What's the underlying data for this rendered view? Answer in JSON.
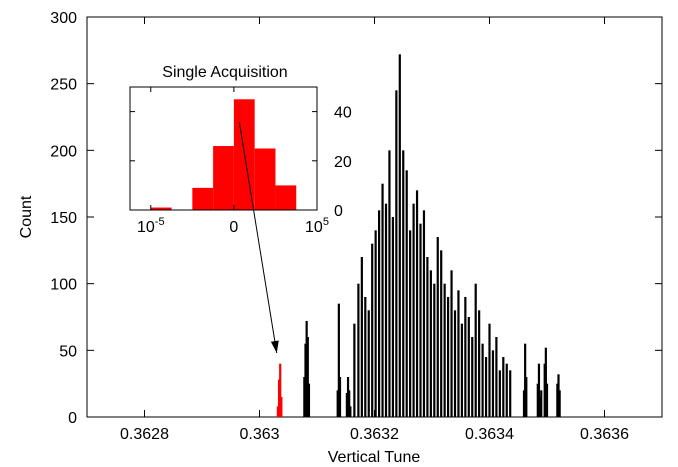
{
  "chart_data": [
    {
      "type": "bar",
      "title": "",
      "xlabel": "Vertical Tune",
      "ylabel": "Count",
      "xlim": [
        0.3627,
        0.3637
      ],
      "ylim": [
        0,
        300
      ],
      "xticks": [
        0.3628,
        0.363,
        0.3632,
        0.3634,
        0.3636
      ],
      "xtick_labels": [
        "0.3628",
        "0.363",
        "0.3632",
        "0.3634",
        "0.3636"
      ],
      "yticks": [
        0,
        50,
        100,
        150,
        200,
        250,
        300
      ],
      "ytick_labels": [
        "0",
        "50",
        "100",
        "150",
        "200",
        "250",
        "300"
      ],
      "grid": false,
      "series": [
        {
          "color": "#ff0000",
          "x": [
            0.363032,
            0.363034,
            0.363036,
            0.363038
          ],
          "values": [
            8,
            28,
            40,
            15
          ]
        },
        {
          "color": "#000000",
          "x": [
            0.363078,
            0.36308,
            0.363082,
            0.363084,
            0.363086,
            0.363136,
            0.363138,
            0.36314,
            0.363152,
            0.363154,
            0.363156,
            0.363158,
            0.363165,
            0.363172,
            0.363178,
            0.363184,
            0.36319,
            0.363196,
            0.363202,
            0.363208,
            0.363214,
            0.36322,
            0.363226,
            0.363232,
            0.363238,
            0.363244,
            0.36325,
            0.363256,
            0.363262,
            0.363268,
            0.363274,
            0.36328,
            0.363286,
            0.363292,
            0.363298,
            0.363304,
            0.36331,
            0.363316,
            0.363322,
            0.363328,
            0.363334,
            0.36334,
            0.363346,
            0.363352,
            0.363358,
            0.363364,
            0.36337,
            0.363376,
            0.363382,
            0.363388,
            0.363394,
            0.3634,
            0.363406,
            0.363412,
            0.363418,
            0.363424,
            0.36343,
            0.363436,
            0.36346,
            0.363462,
            0.363464,
            0.363484,
            0.363486,
            0.363488,
            0.36349,
            0.363496,
            0.363498,
            0.3635,
            0.363518,
            0.36352,
            0.363522
          ],
          "values": [
            30,
            55,
            72,
            60,
            25,
            20,
            85,
            30,
            18,
            30,
            20,
            8,
            70,
            100,
            120,
            90,
            80,
            130,
            140,
            155,
            175,
            160,
            200,
            150,
            245,
            272,
            200,
            185,
            140,
            160,
            170,
            145,
            155,
            120,
            110,
            100,
            135,
            125,
            100,
            90,
            110,
            80,
            95,
            70,
            90,
            75,
            60,
            100,
            80,
            55,
            45,
            70,
            50,
            60,
            35,
            45,
            40,
            35,
            20,
            55,
            30,
            25,
            40,
            15,
            20,
            40,
            52,
            25,
            25,
            32,
            20
          ]
        }
      ],
      "annotations": [
        {
          "type": "arrow",
          "from": [
            0.362965,
            221
          ],
          "to": [
            0.36303,
            48
          ]
        }
      ]
    },
    {
      "type": "bar",
      "title": "Single Acquisition",
      "xlabel": "",
      "ylabel": "",
      "xscale": "symlog",
      "xticks": [
        "-1e5",
        "0",
        "1e5"
      ],
      "xtick_labels": [
        {
          "base": "10",
          "exp": "-5"
        },
        {
          "base": "0",
          "exp": ""
        },
        {
          "base": "10",
          "exp": "5"
        }
      ],
      "ylim": [
        0,
        50
      ],
      "yticks": [
        0,
        20,
        40
      ],
      "ytick_labels": [
        "0",
        "20",
        "40"
      ],
      "yaxis_side": "right",
      "series": [
        {
          "color": "#ff0000",
          "bin_centers": [
            -3.5,
            -1.5,
            -0.5,
            0.5,
            1.5,
            2.5
          ],
          "bin_width": 1,
          "values": [
            1,
            9,
            26,
            45,
            25,
            10
          ]
        }
      ],
      "x_range": [
        -5,
        4
      ]
    }
  ]
}
